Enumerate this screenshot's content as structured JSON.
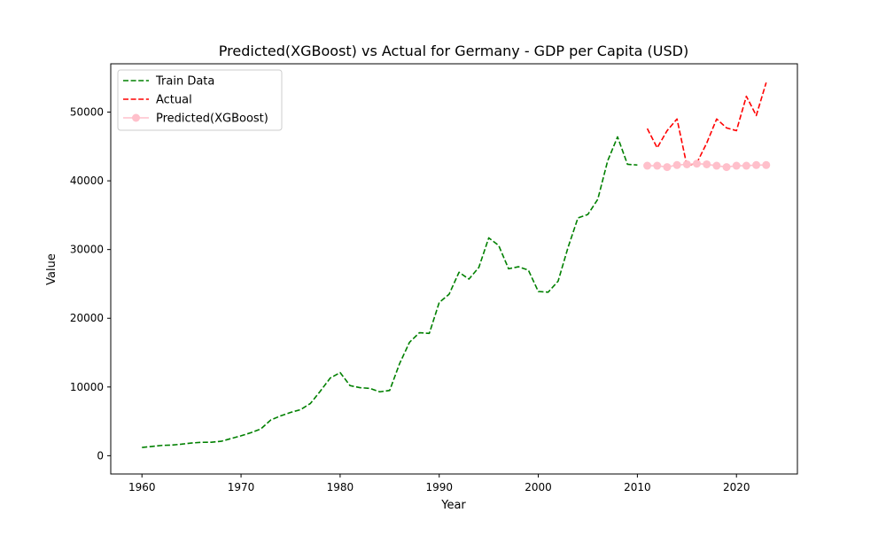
{
  "chart_data": {
    "type": "line",
    "title": "Predicted(XGBoost) vs Actual for Germany - GDP per Capita (USD)",
    "xlabel": "Year",
    "ylabel": "Value",
    "xlim": [
      1956.85,
      2026.15
    ],
    "ylim": [
      -2658,
      57030
    ],
    "xticks": [
      1960,
      1970,
      1980,
      1990,
      2000,
      2010,
      2020
    ],
    "yticks": [
      0,
      10000,
      20000,
      30000,
      40000,
      50000
    ],
    "legend_position": "upper left",
    "grid": false,
    "series": [
      {
        "name": "Train Data",
        "color": "#008000",
        "style": "dashed",
        "marker": "none",
        "x": [
          1960,
          1961,
          1962,
          1963,
          1964,
          1965,
          1966,
          1967,
          1968,
          1969,
          1970,
          1971,
          1972,
          1973,
          1974,
          1975,
          1976,
          1977,
          1978,
          1979,
          1980,
          1981,
          1982,
          1983,
          1984,
          1985,
          1986,
          1987,
          1988,
          1989,
          1990,
          1991,
          1992,
          1993,
          1994,
          1995,
          1996,
          1997,
          1998,
          1999,
          2000,
          2001,
          2002,
          2003,
          2004,
          2005,
          2006,
          2007,
          2008,
          2009,
          2010
        ],
        "y": [
          1200,
          1350,
          1500,
          1550,
          1680,
          1850,
          1950,
          1960,
          2100,
          2500,
          2900,
          3350,
          3900,
          5200,
          5800,
          6300,
          6700,
          7600,
          9400,
          11300,
          12100,
          10200,
          9900,
          9800,
          9300,
          9500,
          13400,
          16500,
          17900,
          17800,
          22300,
          23500,
          26700,
          25700,
          27400,
          31700,
          30600,
          27200,
          27500,
          27000,
          23900,
          23800,
          25400,
          30300,
          34600,
          35100,
          37300,
          42900,
          46400,
          42400,
          42300
        ]
      },
      {
        "name": "Actual",
        "color": "#ff0000",
        "style": "dashed",
        "marker": "none",
        "x": [
          2011,
          2012,
          2013,
          2014,
          2015,
          2016,
          2017,
          2018,
          2019,
          2020,
          2021,
          2022,
          2023
        ],
        "y": [
          47600,
          44800,
          47300,
          49000,
          42200,
          42600,
          45500,
          49000,
          47700,
          47300,
          52300,
          49500,
          54300
        ]
      },
      {
        "name": "Predicted(XGBoost)",
        "color": "#ffc0cb",
        "style": "solid",
        "marker": "circle",
        "x": [
          2011,
          2012,
          2013,
          2014,
          2015,
          2016,
          2017,
          2018,
          2019,
          2020,
          2021,
          2022,
          2023
        ],
        "y": [
          42200,
          42200,
          42000,
          42300,
          42400,
          42500,
          42400,
          42200,
          42000,
          42200,
          42200,
          42300,
          42300
        ]
      }
    ]
  }
}
